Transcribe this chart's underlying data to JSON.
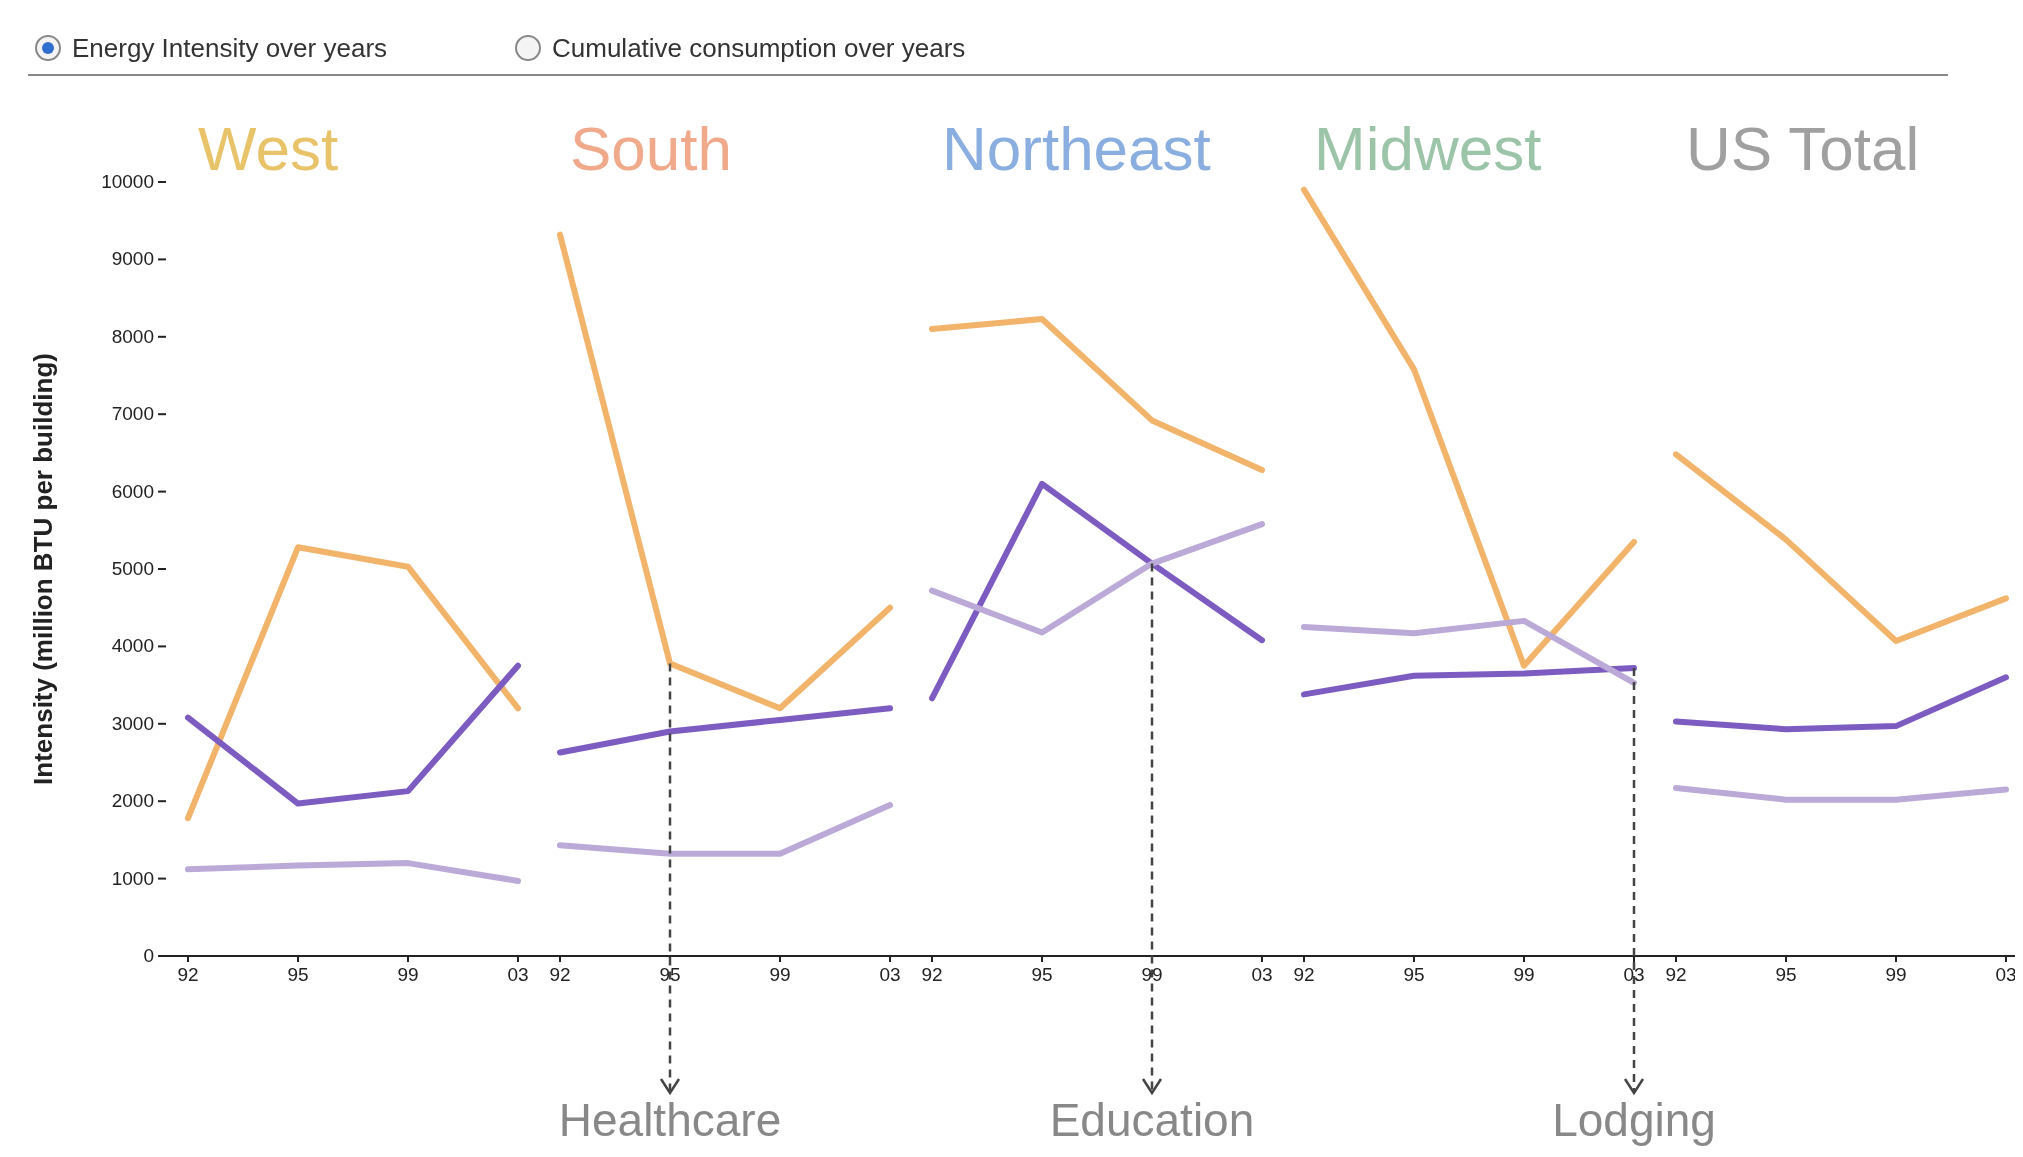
{
  "chart_data": [
    {
      "type": "line",
      "title": "West",
      "ylabel": "Intensity (million BTU per building)",
      "categories": [
        "92",
        "95",
        "99",
        "03"
      ],
      "ylim": [
        0,
        10000
      ],
      "yticks": [
        0,
        1000,
        2000,
        3000,
        4000,
        5000,
        6000,
        7000,
        8000,
        9000,
        10000
      ],
      "annotations": [
        "Energy Intensity over years",
        "Cumulative consumption over years"
      ],
      "series": [
        {
          "color": "#f2b36a",
          "values": [
            1780,
            5280,
            5030,
            3200
          ]
        },
        {
          "color": "#7c5cc0",
          "values": [
            3080,
            1970,
            2130,
            3750
          ]
        },
        {
          "color": "#bba9d8",
          "values": [
            1120,
            1170,
            1200,
            970
          ]
        }
      ]
    },
    {
      "type": "line",
      "title": "South",
      "categories": [
        "92",
        "95",
        "99",
        "03"
      ],
      "ylim": [
        0,
        10000
      ],
      "yticks": [
        0,
        1000,
        2000,
        3000,
        4000,
        5000,
        6000,
        7000,
        8000,
        9000,
        10000
      ],
      "tick_labels": "x",
      "annotations": [
        {
          "text": "Healthcare",
          "x": "95",
          "y": 3780
        }
      ],
      "series": [
        {
          "color": "#f2b36a",
          "values": [
            9320,
            3780,
            3200,
            4500
          ]
        },
        {
          "color": "#7c5cc0",
          "values": [
            2630,
            2900,
            3050,
            3200
          ]
        },
        {
          "color": "#bba9d8",
          "values": [
            1430,
            1320,
            1320,
            1950
          ]
        }
      ]
    },
    {
      "type": "line",
      "title": "Northeast",
      "categories": [
        "92",
        "95",
        "99",
        "03"
      ],
      "ylim": [
        0,
        10000
      ],
      "yticks": [
        0,
        1000,
        2000,
        3000,
        4000,
        5000,
        6000,
        7000,
        8000,
        9000,
        10000
      ],
      "tick_labels": "x",
      "annotations": [
        {
          "text": "Education",
          "x": "99",
          "y": 5070
        }
      ],
      "series": [
        {
          "color": "#f2b36a",
          "values": [
            8100,
            8230,
            6920,
            6280
          ]
        },
        {
          "color": "#7c5cc0",
          "values": [
            3330,
            6100,
            5070,
            4080
          ]
        },
        {
          "color": "#bba9d8",
          "values": [
            4720,
            4180,
            5070,
            5580
          ]
        }
      ]
    },
    {
      "type": "line",
      "title": "Midwest",
      "categories": [
        "92",
        "95",
        "99",
        "03"
      ],
      "ylim": [
        0,
        10000
      ],
      "yticks": [
        0,
        1000,
        2000,
        3000,
        4000,
        5000,
        6000,
        7000,
        8000,
        9000,
        10000
      ],
      "tick_labels": "x",
      "annotations": [
        {
          "text": "Lodging",
          "x": "03",
          "y": 3720
        }
      ],
      "series": [
        {
          "color": "#f2b36a",
          "values": [
            9900,
            7580,
            3750,
            5350
          ]
        },
        {
          "color": "#7c5cc0",
          "values": [
            3380,
            3620,
            3650,
            3720
          ]
        },
        {
          "color": "#bba9d8",
          "values": [
            4250,
            4170,
            4330,
            3530
          ]
        }
      ]
    },
    {
      "type": "line",
      "title": "US Total",
      "categories": [
        "92",
        "95",
        "99",
        "03"
      ],
      "ylim": [
        0,
        10000
      ],
      "yticks": [
        0,
        1000,
        2000,
        3000,
        4000,
        5000,
        6000,
        7000,
        8000,
        9000,
        10000
      ],
      "tick_labels": "x",
      "series": [
        {
          "color": "#f2b36a",
          "values": [
            6480,
            5380,
            4070,
            4620
          ]
        },
        {
          "color": "#7c5cc0",
          "values": [
            3030,
            2930,
            2970,
            3600
          ]
        },
        {
          "color": "#bba9d8",
          "values": [
            2170,
            2020,
            2020,
            2150
          ]
        }
      ]
    }
  ]
}
